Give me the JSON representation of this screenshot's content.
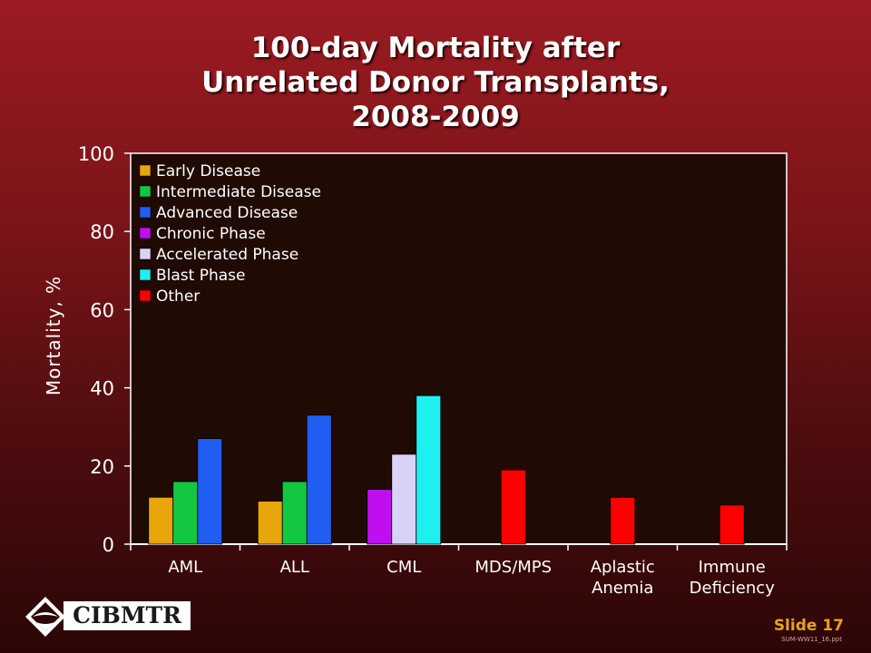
{
  "title_lines": [
    "100-day Mortality after",
    "Unrelated Donor Transplants,",
    "2008-2009"
  ],
  "slide_label": "Slide 17",
  "file_ref": "SUM-WW11_16.ppt",
  "logo_text": "CIBMTR",
  "colors": {
    "plot_bg": "#200a04",
    "axis": "#ffffff",
    "Early Disease": "#e8a50c",
    "Intermediate Disease": "#13c840",
    "Advanced Disease": "#1f5ef0",
    "Chronic Phase": "#c10ef0",
    "Accelerated Phase": "#d8d3f6",
    "Blast Phase": "#1ef0f0",
    "Other": "#ff0000"
  },
  "chart_data": {
    "type": "bar",
    "title": "100-day Mortality after Unrelated Donor Transplants, 2008-2009",
    "ylabel": "Mortality, %",
    "xlabel": "",
    "ylim": [
      0,
      100
    ],
    "yticks": [
      0,
      20,
      40,
      60,
      80,
      100
    ],
    "grid": false,
    "legend_position": "top-left",
    "legend": [
      "Early Disease",
      "Intermediate Disease",
      "Advanced Disease",
      "Chronic Phase",
      "Accelerated Phase",
      "Blast Phase",
      "Other"
    ],
    "categories": [
      {
        "label_lines": [
          "AML"
        ],
        "bars": [
          {
            "series": "Early Disease",
            "value": 12
          },
          {
            "series": "Intermediate Disease",
            "value": 16
          },
          {
            "series": "Advanced Disease",
            "value": 27
          }
        ]
      },
      {
        "label_lines": [
          "ALL"
        ],
        "bars": [
          {
            "series": "Early Disease",
            "value": 11
          },
          {
            "series": "Intermediate Disease",
            "value": 16
          },
          {
            "series": "Advanced Disease",
            "value": 33
          }
        ]
      },
      {
        "label_lines": [
          "CML"
        ],
        "bars": [
          {
            "series": "Chronic Phase",
            "value": 14
          },
          {
            "series": "Accelerated Phase",
            "value": 23
          },
          {
            "series": "Blast Phase",
            "value": 38
          }
        ]
      },
      {
        "label_lines": [
          "MDS/MPS"
        ],
        "bars": [
          {
            "series": "Other",
            "value": 19
          }
        ]
      },
      {
        "label_lines": [
          "Aplastic",
          "Anemia"
        ],
        "bars": [
          {
            "series": "Other",
            "value": 12
          }
        ]
      },
      {
        "label_lines": [
          "Immune",
          "Deficiency"
        ],
        "bars": [
          {
            "series": "Other",
            "value": 10
          }
        ]
      }
    ]
  }
}
